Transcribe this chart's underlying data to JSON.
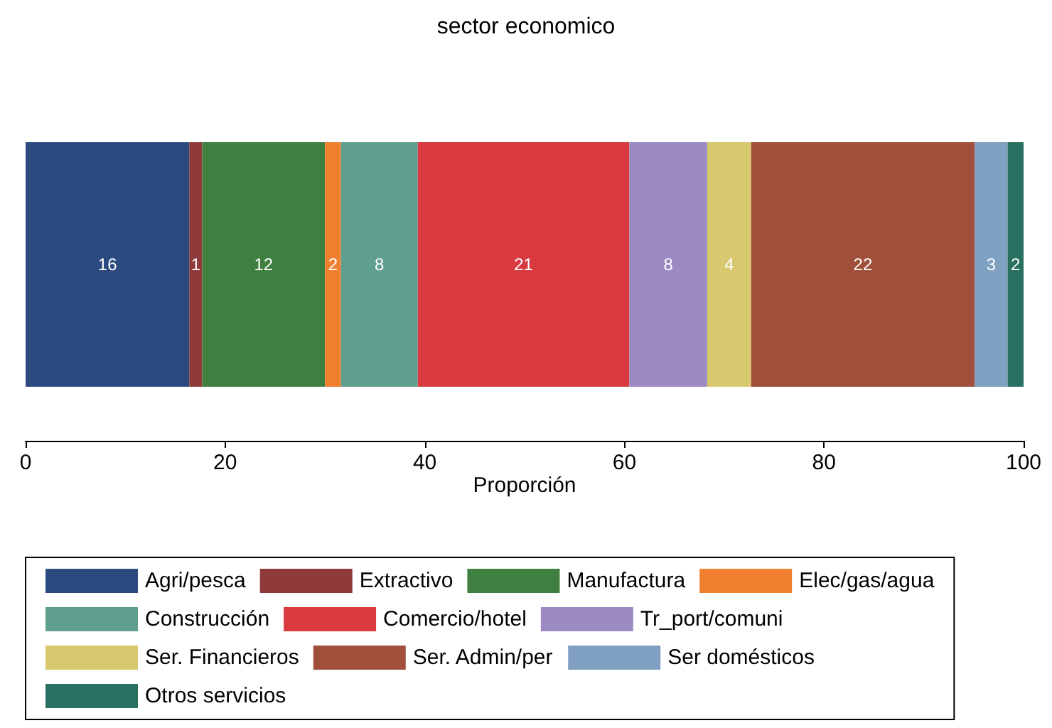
{
  "chart_data": {
    "type": "bar",
    "title": "sector economico",
    "xlabel": "Proporción",
    "orientation": "horizontal",
    "stacked": true,
    "categories": [
      null
    ],
    "xlim": [
      0,
      100
    ],
    "xticks": [
      0,
      20,
      40,
      60,
      80,
      100
    ],
    "grid": false,
    "legend": "bottom",
    "series": [
      {
        "name": "Agri/pesca",
        "color": "#2b4a80",
        "values": [
          16.4
        ],
        "value_labels": [
          "16"
        ]
      },
      {
        "name": "Extractivo",
        "color": "#8f3b3b",
        "values": [
          1.3
        ],
        "value_labels": [
          "1"
        ]
      },
      {
        "name": "Manufactura",
        "color": "#3f7f3f",
        "values": [
          12.3
        ],
        "value_labels": [
          "12"
        ]
      },
      {
        "name": "Elec/gas/agua",
        "color": "#f07f2f",
        "values": [
          1.6
        ],
        "value_labels": [
          "2"
        ]
      },
      {
        "name": "Construcción",
        "color": "#5f9f8f",
        "values": [
          7.7
        ],
        "value_labels": [
          "8"
        ]
      },
      {
        "name": "Comercio/hotel",
        "color": "#d93a40",
        "values": [
          21.2
        ],
        "value_labels": [
          "21"
        ]
      },
      {
        "name": "Tr_port/comuni",
        "color": "#9b8ac4",
        "values": [
          7.8
        ],
        "value_labels": [
          "8"
        ]
      },
      {
        "name": "Ser. Financieros",
        "color": "#d8c86f",
        "values": [
          4.4
        ],
        "value_labels": [
          "4"
        ]
      },
      {
        "name": "Ser. Admin/per",
        "color": "#a0503a",
        "values": [
          22.4
        ],
        "value_labels": [
          "22"
        ]
      },
      {
        "name": "Ser domésticos",
        "color": "#7fa0c0",
        "values": [
          3.3
        ],
        "value_labels": [
          "3"
        ]
      },
      {
        "name": "Otros servicios",
        "color": "#2a7060",
        "values": [
          1.6
        ],
        "value_labels": [
          "2"
        ]
      }
    ]
  }
}
